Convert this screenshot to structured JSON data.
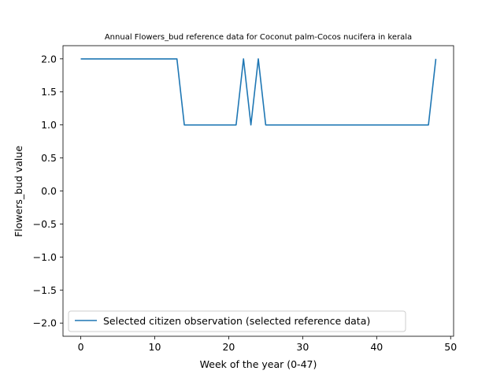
{
  "chart_data": {
    "type": "line",
    "title": "Annual Flowers_bud reference data for Coconut palm-Cocos nucifera in kerala",
    "xlabel": "Week of the year (0-47)",
    "ylabel": "Flowers_bud value",
    "xlim": [
      -2.4,
      50.4
    ],
    "ylim": [
      -2.2,
      2.2
    ],
    "xticks": [
      0,
      10,
      20,
      30,
      40,
      50
    ],
    "yticks": [
      -2.0,
      -1.5,
      -1.0,
      -0.5,
      0.0,
      0.5,
      1.0,
      1.5,
      2.0
    ],
    "grid": false,
    "legend_position": "lower-left",
    "series": [
      {
        "name": "Selected citizen observation (selected reference data)",
        "color": "#1f77b4",
        "x": [
          0,
          1,
          2,
          3,
          4,
          5,
          6,
          7,
          8,
          9,
          10,
          11,
          12,
          13,
          14,
          15,
          16,
          17,
          18,
          19,
          20,
          21,
          22,
          23,
          24,
          25,
          26,
          27,
          28,
          29,
          30,
          31,
          32,
          33,
          34,
          35,
          36,
          37,
          38,
          39,
          40,
          41,
          42,
          43,
          44,
          45,
          46,
          47,
          48
        ],
        "y": [
          2,
          2,
          2,
          2,
          2,
          2,
          2,
          2,
          2,
          2,
          2,
          2,
          2,
          2,
          1,
          1,
          1,
          1,
          1,
          1,
          1,
          1,
          2,
          1,
          2,
          1,
          1,
          1,
          1,
          1,
          1,
          1,
          1,
          1,
          1,
          1,
          1,
          1,
          1,
          1,
          1,
          1,
          1,
          1,
          1,
          1,
          1,
          1,
          2
        ]
      }
    ]
  }
}
